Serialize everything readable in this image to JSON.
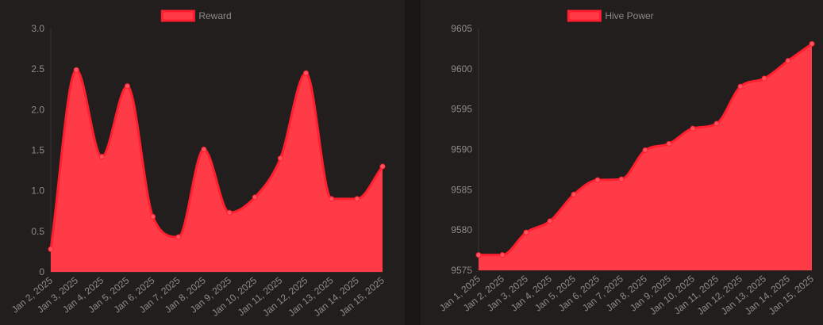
{
  "colors": {
    "background": "#1b1717",
    "panel": "#231e1e",
    "series_fill": "#ff3b47",
    "series_line": "#ff1f2f",
    "point": "#ff5563",
    "text": "#8f8a8a",
    "axis": "#3a3434"
  },
  "chart_data": [
    {
      "type": "area",
      "legend_position": "top-center",
      "grid": false,
      "categories": [
        "Jan 2, 2025",
        "Jan 3, 2025",
        "Jan 4, 2025",
        "Jan 5, 2025",
        "Jan 6, 2025",
        "Jan 7, 2025",
        "Jan 8, 2025",
        "Jan 9, 2025",
        "Jan 10, 2025",
        "Jan 11, 2025",
        "Jan 12, 2025",
        "Jan 13, 2025",
        "Jan 14, 2025",
        "Jan 15, 2025"
      ],
      "series": [
        {
          "name": "Reward",
          "values": [
            0.28,
            2.49,
            1.42,
            2.29,
            0.68,
            0.43,
            1.51,
            0.73,
            0.92,
            1.4,
            2.45,
            0.9,
            0.9,
            1.3
          ]
        }
      ],
      "ylim": [
        0,
        3.0
      ],
      "yticks": [
        "0",
        "0.5",
        "1.0",
        "1.5",
        "2.0",
        "2.5",
        "3.0"
      ],
      "ytick_values": [
        0,
        0.5,
        1.0,
        1.5,
        2.0,
        2.5,
        3.0
      ]
    },
    {
      "type": "area",
      "legend_position": "top-center",
      "grid": false,
      "categories": [
        "Jan 1, 2025",
        "Jan 2, 2025",
        "Jan 3, 2025",
        "Jan 4, 2025",
        "Jan 5, 2025",
        "Jan 6, 2025",
        "Jan 7, 2025",
        "Jan 8, 2025",
        "Jan 9, 2025",
        "Jan 10, 2025",
        "Jan 11, 2025",
        "Jan 12, 2025",
        "Jan 13, 2025",
        "Jan 14, 2025",
        "Jan 15, 2025"
      ],
      "series": [
        {
          "name": "Hive Power",
          "values": [
            9576.9,
            9576.9,
            9579.7,
            9581.1,
            9584.4,
            9586.2,
            9586.3,
            9589.9,
            9590.7,
            9592.6,
            9593.2,
            9597.8,
            9598.8,
            9601.0,
            9603.1
          ]
        }
      ],
      "ylim": [
        9575,
        9605
      ],
      "yticks": [
        "9575",
        "9580",
        "9585",
        "9590",
        "9595",
        "9600",
        "9605"
      ],
      "ytick_values": [
        9575,
        9580,
        9585,
        9590,
        9595,
        9600,
        9605
      ]
    }
  ]
}
